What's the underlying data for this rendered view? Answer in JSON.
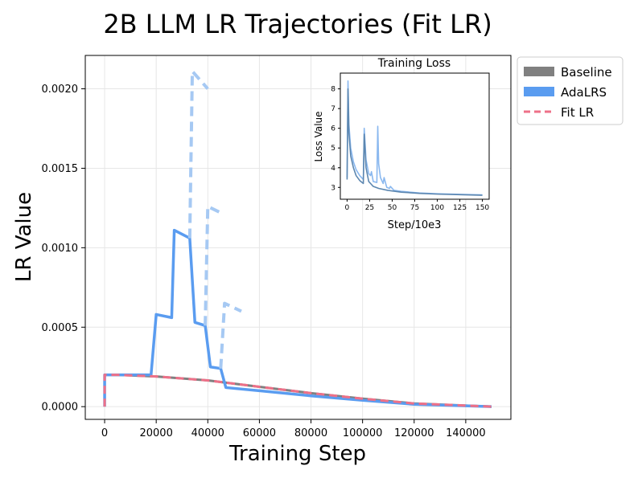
{
  "chart_data": [
    {
      "type": "line",
      "title": "2B LLM LR Trajectories (Fit LR)",
      "xlabel": "Training Step",
      "ylabel": "LR Value",
      "xlim": [
        -7500,
        157500
      ],
      "ylim": [
        -8e-05,
        0.00221
      ],
      "xticks": [
        0,
        20000,
        40000,
        60000,
        80000,
        100000,
        120000,
        140000
      ],
      "xtick_labels": [
        "0",
        "20000",
        "40000",
        "60000",
        "80000",
        "100000",
        "120000",
        "140000"
      ],
      "yticks": [
        0.0,
        0.0005,
        0.001,
        0.0015,
        0.002
      ],
      "ytick_labels": [
        "0.0000",
        "0.0005",
        "0.0010",
        "0.0015",
        "0.0020"
      ],
      "grid": true,
      "legend": {
        "position": "outside top-right",
        "entries": [
          {
            "label": "Baseline",
            "color": "#808080",
            "style": "patch"
          },
          {
            "label": "AdaLRS",
            "color": "#5a9cf0",
            "style": "patch"
          },
          {
            "label": "Fit LR",
            "color": "#ee7088",
            "style": "dashed"
          }
        ]
      },
      "series": [
        {
          "name": "Baseline",
          "color": "#808080",
          "style": "solid",
          "points": [
            [
              0,
              0
            ],
            [
              0,
              0.0002
            ],
            [
              5000,
              0.0002
            ],
            [
              20000,
              0.00019
            ],
            [
              40000,
              0.000165
            ],
            [
              60000,
              0.000125
            ],
            [
              80000,
              8.5e-05
            ],
            [
              100000,
              5e-05
            ],
            [
              120000,
              2e-05
            ],
            [
              150000,
              0.0
            ]
          ]
        },
        {
          "name": "AdaLRS",
          "color": "#5a9cf0",
          "style": "solid",
          "points": [
            [
              0,
              0
            ],
            [
              0,
              0.0002
            ],
            [
              5000,
              0.0002
            ],
            [
              18000,
              0.0002
            ],
            [
              20000,
              0.00058
            ],
            [
              26000,
              0.00056
            ],
            [
              27000,
              0.00111
            ],
            [
              33000,
              0.00106
            ],
            [
              35000,
              0.00053
            ],
            [
              39000,
              0.00051
            ],
            [
              41000,
              0.00025
            ],
            [
              45000,
              0.00024
            ],
            [
              47000,
              0.00012
            ],
            [
              60000,
              0.0001
            ],
            [
              80000,
              6.8e-05
            ],
            [
              100000,
              4e-05
            ],
            [
              120000,
              1.5e-05
            ],
            [
              150000,
              0.0
            ]
          ]
        },
        {
          "name": "AdaLRS (trial)",
          "color": "#a6c9f3",
          "style": "dashed",
          "segments": [
            [
              [
                33000,
                0.00106
              ],
              [
                34000,
                0.00211
              ],
              [
                40000,
                0.002
              ]
            ],
            [
              [
                39000,
                0.00051
              ],
              [
                40000,
                0.00126
              ],
              [
                45000,
                0.00122
              ]
            ],
            [
              [
                45000,
                0.00024
              ],
              [
                46500,
                0.00065
              ],
              [
                53000,
                0.0006
              ]
            ]
          ]
        },
        {
          "name": "Fit LR",
          "color": "#ee7088",
          "style": "dashed",
          "points": [
            [
              0,
              0
            ],
            [
              0,
              0.0002
            ],
            [
              5000,
              0.0002
            ],
            [
              20000,
              0.00019
            ],
            [
              40000,
              0.000165
            ],
            [
              60000,
              0.000125
            ],
            [
              80000,
              8.5e-05
            ],
            [
              100000,
              5e-05
            ],
            [
              120000,
              2e-05
            ],
            [
              150000,
              0.0
            ]
          ]
        }
      ]
    },
    {
      "type": "line",
      "title": "Training Loss",
      "xlabel": "Step/10e3",
      "ylabel": "Loss Value",
      "xlim": [
        -7.5,
        157.5
      ],
      "ylim": [
        2.4,
        8.8
      ],
      "xticks": [
        0,
        25,
        50,
        75,
        100,
        125,
        150
      ],
      "xtick_labels": [
        "0",
        "25",
        "50",
        "75",
        "100",
        "125",
        "150"
      ],
      "yticks": [
        3,
        4,
        5,
        6,
        7,
        8
      ],
      "ytick_labels": [
        "3",
        "4",
        "5",
        "6",
        "7",
        "8"
      ],
      "series": [
        {
          "name": "AdaLRS",
          "color": "#8ab8ef",
          "points": [
            [
              0,
              3.5
            ],
            [
              1,
              8.4
            ],
            [
              2,
              6.2
            ],
            [
              4,
              5.0
            ],
            [
              7,
              4.3
            ],
            [
              10,
              3.9
            ],
            [
              14,
              3.6
            ],
            [
              18,
              3.4
            ],
            [
              19,
              6.0
            ],
            [
              21,
              4.4
            ],
            [
              24,
              3.7
            ],
            [
              26,
              3.6
            ],
            [
              27,
              3.8
            ],
            [
              29,
              3.3
            ],
            [
              33,
              3.25
            ],
            [
              34,
              6.1
            ],
            [
              35,
              4.2
            ],
            [
              37,
              3.5
            ],
            [
              40,
              3.2
            ],
            [
              41,
              3.5
            ],
            [
              44,
              3.0
            ],
            [
              47,
              2.95
            ],
            [
              48,
              3.05
            ],
            [
              52,
              2.85
            ],
            [
              60,
              2.8
            ],
            [
              80,
              2.72
            ],
            [
              100,
              2.68
            ],
            [
              125,
              2.65
            ],
            [
              150,
              2.62
            ]
          ]
        },
        {
          "name": "Baseline",
          "color": "#5d87b0",
          "points": [
            [
              0,
              3.4
            ],
            [
              1,
              8.0
            ],
            [
              2,
              5.8
            ],
            [
              4,
              4.6
            ],
            [
              7,
              4.0
            ],
            [
              10,
              3.6
            ],
            [
              14,
              3.35
            ],
            [
              18,
              3.2
            ],
            [
              19,
              5.7
            ],
            [
              21,
              4.0
            ],
            [
              24,
              3.3
            ],
            [
              26,
              3.2
            ],
            [
              29,
              3.05
            ],
            [
              35,
              2.95
            ],
            [
              45,
              2.85
            ],
            [
              60,
              2.76
            ],
            [
              80,
              2.7
            ],
            [
              100,
              2.66
            ],
            [
              125,
              2.63
            ],
            [
              150,
              2.6
            ]
          ]
        }
      ]
    }
  ]
}
